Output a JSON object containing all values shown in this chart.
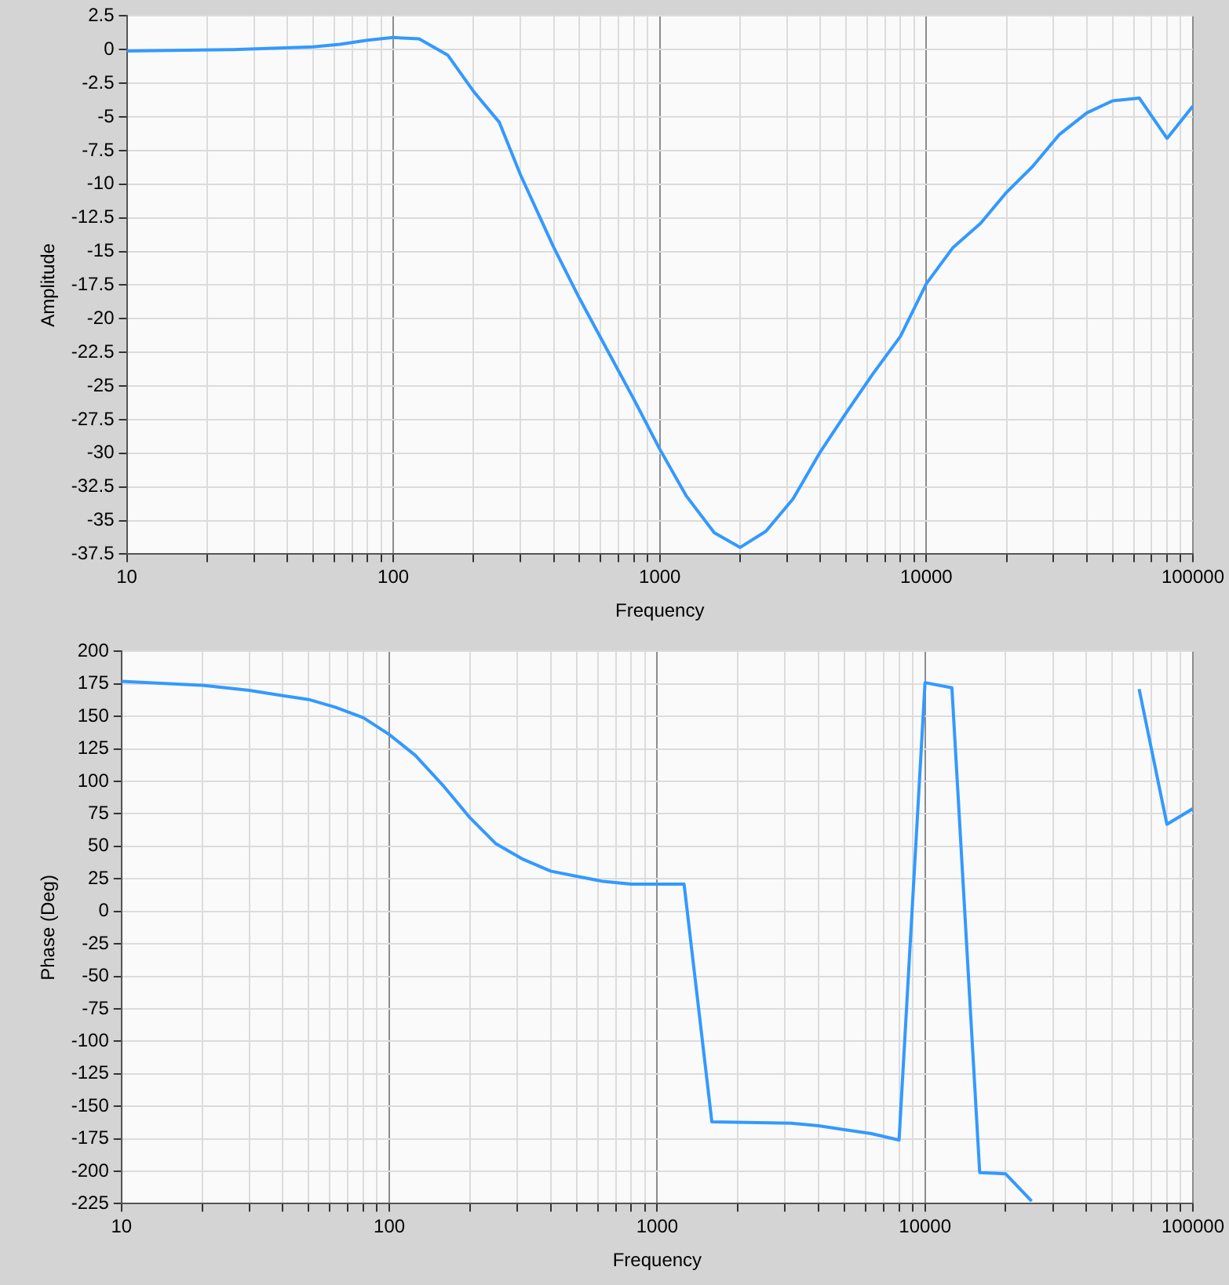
{
  "chart_data": [
    {
      "type": "line",
      "xlabel": "Frequency",
      "ylabel": "Amplitude",
      "log": "x",
      "grid": true,
      "marker": "none",
      "line_style": "solid",
      "color": "#3399ff",
      "x": [
        10,
        25,
        50,
        63,
        80,
        100,
        125,
        160,
        200,
        250,
        300,
        400,
        500,
        630,
        800,
        1000,
        1260,
        1600,
        2000,
        2500,
        3160,
        4000,
        5000,
        6300,
        8000,
        10000,
        12600,
        16000,
        20000,
        25000,
        31600,
        40000,
        50000,
        63000,
        80000,
        100000
      ],
      "values": [
        -0.1,
        0,
        0.2,
        0.4,
        0.7,
        0.9,
        0.8,
        -0.4,
        -3.1,
        -5.4,
        -9.3,
        -14.7,
        -18.5,
        -22.2,
        -26,
        -29.7,
        -33.2,
        -35.9,
        -37,
        -35.8,
        -33.4,
        -29.9,
        -27,
        -24.1,
        -21.3,
        -17.4,
        -14.7,
        -12.9,
        -10.6,
        -8.7,
        -6.3,
        -4.7,
        -3.8,
        -3.6,
        -6.6,
        -4.2
      ],
      "xlim": [
        10,
        100000
      ],
      "xticks": [
        10,
        {
          "value": 20,
          "label": null
        },
        {
          "value": 30,
          "label": null
        },
        {
          "value": 40,
          "label": null
        },
        {
          "value": 50,
          "label": null
        },
        {
          "value": 60,
          "label": null
        },
        {
          "value": 70,
          "label": null
        },
        {
          "value": 80,
          "label": null
        },
        {
          "value": 90,
          "label": null
        },
        100,
        {
          "value": 200,
          "label": null
        },
        {
          "value": 300,
          "label": null
        },
        {
          "value": 400,
          "label": null
        },
        {
          "value": 500,
          "label": null
        },
        {
          "value": 600,
          "label": null
        },
        {
          "value": 700,
          "label": null
        },
        {
          "value": 800,
          "label": null
        },
        {
          "value": 900,
          "label": null
        },
        1000,
        {
          "value": 2000,
          "label": null
        },
        {
          "value": 3000,
          "label": null
        },
        {
          "value": 4000,
          "label": null
        },
        {
          "value": 5000,
          "label": null
        },
        {
          "value": 6000,
          "label": null
        },
        {
          "value": 7000,
          "label": null
        },
        {
          "value": 8000,
          "label": null
        },
        {
          "value": 9000,
          "label": null
        },
        10000,
        {
          "value": 20000,
          "label": null
        },
        {
          "value": 30000,
          "label": null
        },
        {
          "value": 40000,
          "label": null
        },
        {
          "value": 50000,
          "label": null
        },
        {
          "value": 60000,
          "label": null
        },
        {
          "value": 70000,
          "label": null
        },
        {
          "value": 80000,
          "label": null
        },
        {
          "value": 90000,
          "label": null
        },
        100000
      ],
      "ylim": [
        -37.5,
        2.5
      ],
      "yticks": [
        2.5,
        0,
        -2.5,
        -5,
        -7.5,
        -10,
        -12.5,
        -15,
        -17.5,
        -20,
        -22.5,
        -25,
        -27.5,
        -30,
        -32.5,
        -35,
        -37.5
      ]
    },
    {
      "type": "line",
      "xlabel": "Frequency",
      "ylabel": "Phase (Deg)",
      "log": "x",
      "grid": true,
      "marker": "none",
      "line_style": "solid",
      "color": "#3399ff",
      "x": [
        10,
        20,
        30,
        40,
        50,
        63,
        80,
        100,
        125,
        160,
        200,
        250,
        316,
        400,
        500,
        630,
        800,
        1000,
        1260,
        1600,
        3160,
        4000,
        5000,
        6300,
        8000,
        10000,
        12600,
        16000,
        20000,
        25000,
        40000,
        63000,
        80000,
        100000
      ],
      "values": [
        177,
        174,
        170,
        166,
        163,
        157,
        149,
        136,
        120,
        96,
        72,
        52,
        40,
        31,
        27,
        23,
        21,
        21,
        21,
        -162,
        -163,
        -165,
        -168,
        -171,
        -176,
        176,
        172,
        -201,
        -202,
        -223,
        null,
        171,
        67,
        79
      ],
      "xlim": [
        10,
        100000
      ],
      "xticks": [
        10,
        {
          "value": 20,
          "label": null
        },
        {
          "value": 30,
          "label": null
        },
        {
          "value": 40,
          "label": null
        },
        {
          "value": 50,
          "label": null
        },
        {
          "value": 60,
          "label": null
        },
        {
          "value": 70,
          "label": null
        },
        {
          "value": 80,
          "label": null
        },
        {
          "value": 90,
          "label": null
        },
        100,
        {
          "value": 200,
          "label": null
        },
        {
          "value": 300,
          "label": null
        },
        {
          "value": 400,
          "label": null
        },
        {
          "value": 500,
          "label": null
        },
        {
          "value": 600,
          "label": null
        },
        {
          "value": 700,
          "label": null
        },
        {
          "value": 800,
          "label": null
        },
        {
          "value": 900,
          "label": null
        },
        1000,
        {
          "value": 2000,
          "label": null
        },
        {
          "value": 3000,
          "label": null
        },
        {
          "value": 4000,
          "label": null
        },
        {
          "value": 5000,
          "label": null
        },
        {
          "value": 6000,
          "label": null
        },
        {
          "value": 7000,
          "label": null
        },
        {
          "value": 8000,
          "label": null
        },
        {
          "value": 9000,
          "label": null
        },
        10000,
        {
          "value": 20000,
          "label": null
        },
        {
          "value": 30000,
          "label": null
        },
        {
          "value": 40000,
          "label": null
        },
        {
          "value": 50000,
          "label": null
        },
        {
          "value": 60000,
          "label": null
        },
        {
          "value": 70000,
          "label": null
        },
        {
          "value": 80000,
          "label": null
        },
        {
          "value": 90000,
          "label": null
        },
        100000
      ],
      "ylim": [
        -225,
        200
      ],
      "yticks": [
        200,
        175,
        150,
        125,
        100,
        75,
        50,
        25,
        0,
        -25,
        -50,
        -75,
        -100,
        -125,
        -150,
        -175,
        -200,
        -225
      ]
    }
  ]
}
